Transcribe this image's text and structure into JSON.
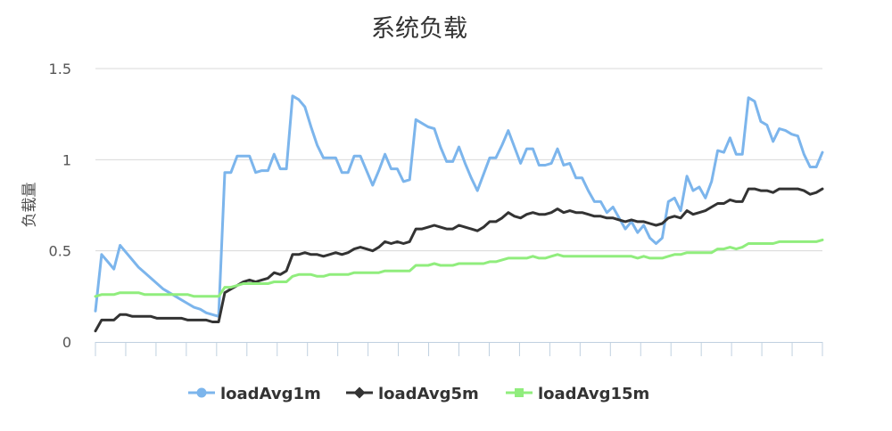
{
  "chart_data": {
    "type": "line",
    "title": "系统负载",
    "ylabel": "负载量",
    "xlabel": "",
    "ylim": [
      0,
      1.5
    ],
    "yticks": [
      "0",
      "0.5",
      "1",
      "1.5"
    ],
    "grid": true,
    "legend_position": "bottom",
    "series": [
      {
        "name": "loadAvg1m",
        "color": "#7cb5ec",
        "values": [
          0.17,
          0.48,
          0.44,
          0.4,
          0.53,
          0.49,
          0.45,
          0.41,
          0.38,
          0.35,
          0.32,
          0.29,
          0.27,
          0.25,
          0.23,
          0.21,
          0.19,
          0.18,
          0.16,
          0.15,
          0.14,
          0.93,
          0.93,
          1.02,
          1.02,
          1.02,
          0.93,
          0.94,
          0.94,
          1.03,
          0.95,
          0.95,
          1.35,
          1.33,
          1.29,
          1.18,
          1.08,
          1.01,
          1.01,
          1.01,
          0.93,
          0.93,
          1.02,
          1.02,
          0.94,
          0.86,
          0.94,
          1.03,
          0.95,
          0.95,
          0.88,
          0.89,
          1.22,
          1.2,
          1.18,
          1.17,
          1.07,
          0.99,
          0.99,
          1.07,
          0.98,
          0.9,
          0.83,
          0.92,
          1.01,
          1.01,
          1.08,
          1.16,
          1.07,
          0.98,
          1.06,
          1.06,
          0.97,
          0.97,
          0.98,
          1.06,
          0.97,
          0.98,
          0.9,
          0.9,
          0.83,
          0.77,
          0.77,
          0.71,
          0.74,
          0.68,
          0.62,
          0.66,
          0.6,
          0.64,
          0.57,
          0.54,
          0.57,
          0.77,
          0.79,
          0.72,
          0.91,
          0.83,
          0.85,
          0.79,
          0.88,
          1.05,
          1.04,
          1.12,
          1.03,
          1.03,
          1.34,
          1.32,
          1.21,
          1.19,
          1.1,
          1.17,
          1.16,
          1.14,
          1.13,
          1.03,
          0.96,
          0.96,
          1.04
        ]
      },
      {
        "name": "loadAvg5m",
        "color": "#333333",
        "values": [
          0.06,
          0.12,
          0.12,
          0.12,
          0.15,
          0.15,
          0.14,
          0.14,
          0.14,
          0.14,
          0.13,
          0.13,
          0.13,
          0.13,
          0.13,
          0.12,
          0.12,
          0.12,
          0.12,
          0.11,
          0.11,
          0.27,
          0.29,
          0.31,
          0.33,
          0.34,
          0.33,
          0.34,
          0.35,
          0.38,
          0.37,
          0.39,
          0.48,
          0.48,
          0.49,
          0.48,
          0.48,
          0.47,
          0.48,
          0.49,
          0.48,
          0.49,
          0.51,
          0.52,
          0.51,
          0.5,
          0.52,
          0.55,
          0.54,
          0.55,
          0.54,
          0.55,
          0.62,
          0.62,
          0.63,
          0.64,
          0.63,
          0.62,
          0.62,
          0.64,
          0.63,
          0.62,
          0.61,
          0.63,
          0.66,
          0.66,
          0.68,
          0.71,
          0.69,
          0.68,
          0.7,
          0.71,
          0.7,
          0.7,
          0.71,
          0.73,
          0.71,
          0.72,
          0.71,
          0.71,
          0.7,
          0.69,
          0.69,
          0.68,
          0.68,
          0.67,
          0.66,
          0.67,
          0.66,
          0.66,
          0.65,
          0.64,
          0.65,
          0.68,
          0.69,
          0.68,
          0.72,
          0.7,
          0.71,
          0.72,
          0.74,
          0.76,
          0.76,
          0.78,
          0.77,
          0.77,
          0.84,
          0.84,
          0.83,
          0.83,
          0.82,
          0.84,
          0.84,
          0.84,
          0.84,
          0.83,
          0.81,
          0.82,
          0.84
        ]
      },
      {
        "name": "loadAvg15m",
        "color": "#90ed7d",
        "values": [
          0.25,
          0.26,
          0.26,
          0.26,
          0.27,
          0.27,
          0.27,
          0.27,
          0.26,
          0.26,
          0.26,
          0.26,
          0.26,
          0.26,
          0.26,
          0.26,
          0.25,
          0.25,
          0.25,
          0.25,
          0.25,
          0.3,
          0.3,
          0.31,
          0.32,
          0.32,
          0.32,
          0.32,
          0.32,
          0.33,
          0.33,
          0.33,
          0.36,
          0.37,
          0.37,
          0.37,
          0.36,
          0.36,
          0.37,
          0.37,
          0.37,
          0.37,
          0.38,
          0.38,
          0.38,
          0.38,
          0.38,
          0.39,
          0.39,
          0.39,
          0.39,
          0.39,
          0.42,
          0.42,
          0.42,
          0.43,
          0.42,
          0.42,
          0.42,
          0.43,
          0.43,
          0.43,
          0.43,
          0.43,
          0.44,
          0.44,
          0.45,
          0.46,
          0.46,
          0.46,
          0.46,
          0.47,
          0.46,
          0.46,
          0.47,
          0.48,
          0.47,
          0.47,
          0.47,
          0.47,
          0.47,
          0.47,
          0.47,
          0.47,
          0.47,
          0.47,
          0.47,
          0.47,
          0.46,
          0.47,
          0.46,
          0.46,
          0.46,
          0.47,
          0.48,
          0.48,
          0.49,
          0.49,
          0.49,
          0.49,
          0.49,
          0.51,
          0.51,
          0.52,
          0.51,
          0.52,
          0.54,
          0.54,
          0.54,
          0.54,
          0.54,
          0.55,
          0.55,
          0.55,
          0.55,
          0.55,
          0.55,
          0.55,
          0.56
        ]
      }
    ]
  }
}
